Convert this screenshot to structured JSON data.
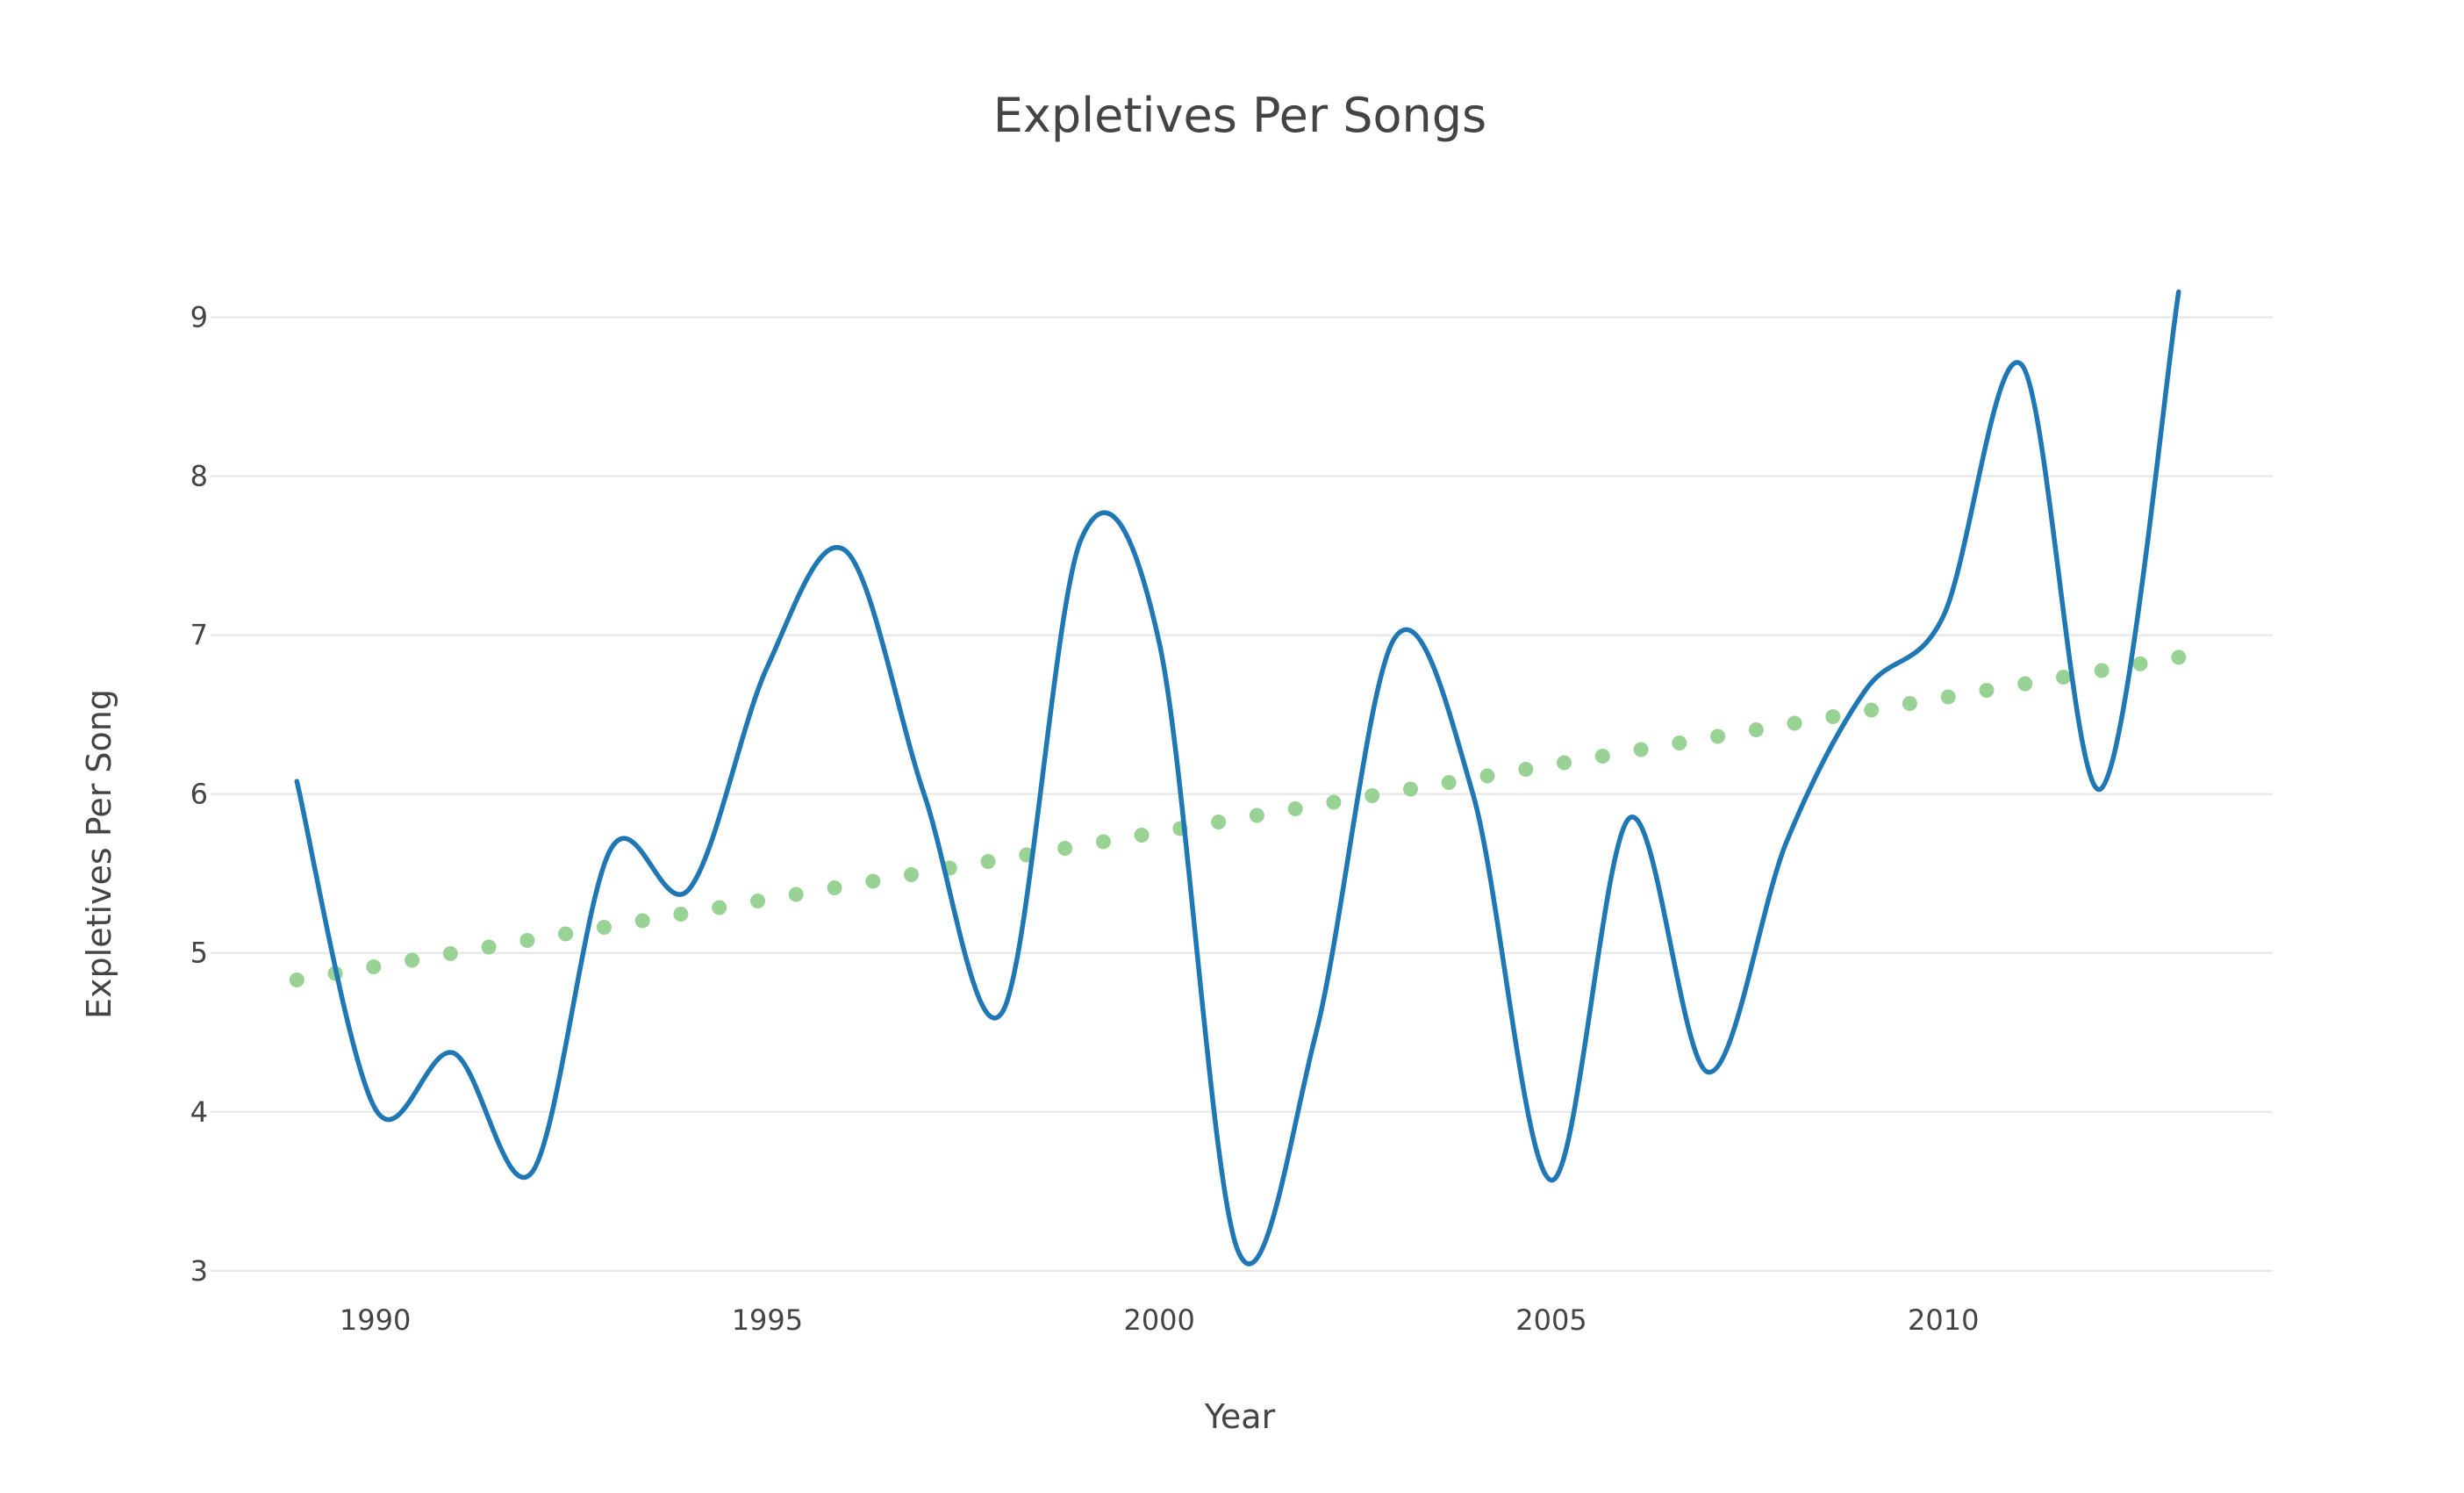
{
  "chart_data": {
    "type": "line",
    "title": "Expletives Per Songs",
    "xlabel": "Year",
    "ylabel": "Expletives Per Song",
    "xlim": [
      1987.9,
      2014.2
    ],
    "ylim": [
      2.85,
      9.45
    ],
    "x_ticks": [
      1990,
      1995,
      2000,
      2005,
      2010
    ],
    "y_ticks": [
      3,
      4,
      5,
      6,
      7,
      8,
      9
    ],
    "grid": "horizontal",
    "legend": "none",
    "series": [
      {
        "style": "spline",
        "color": "#1f77b4",
        "x": [
          1989,
          1990,
          1991,
          1992,
          1993,
          1994,
          1995,
          1996,
          1997,
          1998,
          1999,
          2000,
          2001,
          2002,
          2003,
          2004,
          2005,
          2006,
          2007,
          2008,
          2009,
          2010,
          2011,
          2012,
          2013
        ],
        "y": [
          6.08,
          4.02,
          4.37,
          3.62,
          5.65,
          5.4,
          6.8,
          7.53,
          6.0,
          4.63,
          7.6,
          6.95,
          3.13,
          4.5,
          6.98,
          6.0,
          3.57,
          5.85,
          4.25,
          5.7,
          6.65,
          7.12,
          8.7,
          6.03,
          9.16
        ]
      },
      {
        "style": "dotted",
        "color": "#98d294",
        "x": [
          1989,
          2013
        ],
        "y": [
          4.83,
          6.86
        ]
      }
    ]
  }
}
